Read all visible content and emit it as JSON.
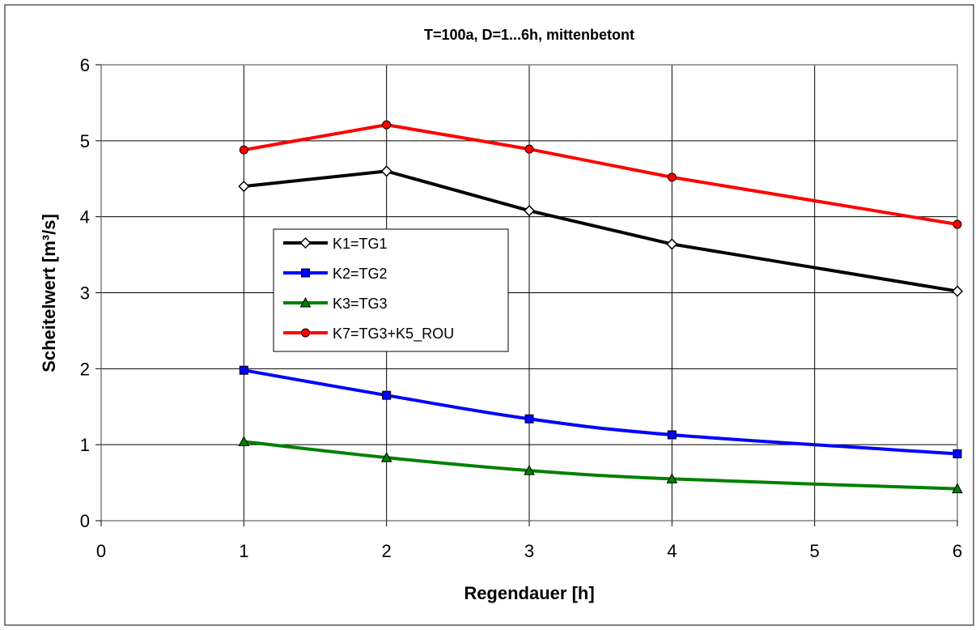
{
  "chart_data": {
    "type": "line",
    "title": "T=100a, D=1...6h, mittenbetont",
    "xlabel": "Regendauer [h]",
    "ylabel": "Scheitelwert [m³/s]",
    "xlim": [
      0,
      6
    ],
    "ylim": [
      0,
      6
    ],
    "xticks": [
      "0",
      "1",
      "2",
      "3",
      "4",
      "5",
      "6"
    ],
    "yticks": [
      "0",
      "1",
      "2",
      "3",
      "4",
      "5",
      "6"
    ],
    "grid": true,
    "legend_position": "center-left",
    "x": [
      1,
      2,
      3,
      4,
      6
    ],
    "series": [
      {
        "name": "K1=TG1",
        "color": "#000000",
        "marker": "diamond",
        "marker_fill": "#ffffff",
        "values": [
          4.4,
          4.6,
          4.08,
          3.64,
          3.02
        ]
      },
      {
        "name": "K2=TG2",
        "color": "#0000ff",
        "marker": "square",
        "marker_fill": "#0000ff",
        "values": [
          1.98,
          1.65,
          1.34,
          1.13,
          0.88
        ]
      },
      {
        "name": "K3=TG3",
        "color": "#008000",
        "marker": "triangle",
        "marker_fill": "#008000",
        "values": [
          1.04,
          0.83,
          0.66,
          0.55,
          0.42
        ]
      },
      {
        "name": "K7=TG3+K5_ROU",
        "color": "#ff0000",
        "marker": "circle",
        "marker_fill": "#ff0000",
        "values": [
          4.88,
          5.21,
          4.89,
          4.52,
          3.9
        ]
      }
    ]
  }
}
